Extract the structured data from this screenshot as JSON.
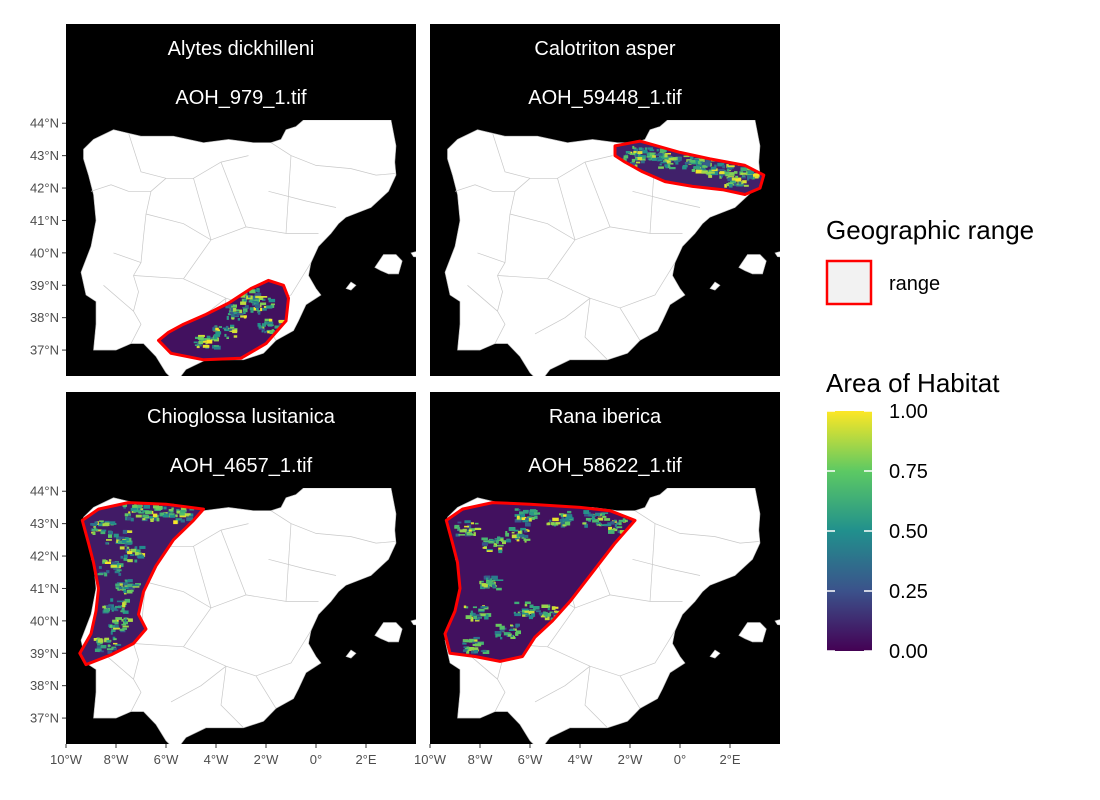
{
  "chart_data": {
    "type": "heatmap",
    "facet_layout": {
      "rows": 2,
      "cols": 2
    },
    "x_ticks": [
      "10°W",
      "8°W",
      "6°W",
      "4°W",
      "2°W",
      "0°",
      "2°E"
    ],
    "x_tick_values": [
      -10,
      -8,
      -6,
      -4,
      -2,
      0,
      2
    ],
    "y_ticks": [
      "44°N",
      "43°N",
      "42°N",
      "41°N",
      "40°N",
      "39°N",
      "38°N",
      "37°N"
    ],
    "y_tick_values": [
      44,
      43,
      42,
      41,
      40,
      39,
      38,
      37
    ],
    "xlim": [
      -10,
      4
    ],
    "ylim": [
      36.2,
      44.1
    ],
    "facets": [
      {
        "species": "Alytes dickhilleni",
        "file": "AOH_979_1.tif",
        "range_polygon": [
          [
            -6.3,
            37.3
          ],
          [
            -5.8,
            36.9
          ],
          [
            -4.5,
            36.7
          ],
          [
            -3.0,
            36.75
          ],
          [
            -2.0,
            37.2
          ],
          [
            -1.2,
            37.9
          ],
          [
            -1.1,
            38.6
          ],
          [
            -1.3,
            39.0
          ],
          [
            -1.9,
            39.15
          ],
          [
            -2.6,
            38.9
          ],
          [
            -3.5,
            38.45
          ],
          [
            -4.4,
            38.1
          ],
          [
            -5.3,
            37.8
          ],
          [
            -5.9,
            37.55
          ]
        ],
        "habitat_level": 0.05,
        "bright_patches": [
          [
            -3.2,
            38.2
          ],
          [
            -2.2,
            38.4
          ],
          [
            -1.9,
            37.8
          ],
          [
            -4.5,
            37.3
          ],
          [
            -3.7,
            37.6
          ],
          [
            -2.6,
            38.7
          ]
        ]
      },
      {
        "species": "Calotriton asper",
        "file": "AOH_59448_1.tif",
        "range_polygon": [
          [
            -2.6,
            43.3
          ],
          [
            -1.6,
            43.45
          ],
          [
            0.0,
            43.1
          ],
          [
            1.2,
            42.9
          ],
          [
            2.6,
            42.7
          ],
          [
            3.35,
            42.4
          ],
          [
            3.2,
            42.0
          ],
          [
            2.6,
            41.8
          ],
          [
            1.7,
            41.95
          ],
          [
            0.5,
            42.05
          ],
          [
            -0.6,
            42.2
          ],
          [
            -1.5,
            42.5
          ],
          [
            -2.2,
            42.8
          ],
          [
            -2.6,
            43.0
          ]
        ],
        "habitat_level": 0.1,
        "bright_patches": [
          [
            -1.5,
            43.1
          ],
          [
            -0.5,
            42.85
          ],
          [
            0.5,
            42.8
          ],
          [
            1.5,
            42.55
          ],
          [
            2.2,
            42.3
          ],
          [
            -0.9,
            43.0
          ],
          [
            0.9,
            42.7
          ],
          [
            2.6,
            42.55
          ],
          [
            -1.9,
            42.95
          ]
        ]
      },
      {
        "species": "Chioglossa lusitanica",
        "file": "AOH_4657_1.tif",
        "range_polygon": [
          [
            -9.35,
            43.1
          ],
          [
            -8.7,
            43.45
          ],
          [
            -7.5,
            43.65
          ],
          [
            -6.0,
            43.6
          ],
          [
            -4.5,
            43.45
          ],
          [
            -4.9,
            43.1
          ],
          [
            -5.7,
            42.5
          ],
          [
            -6.4,
            41.7
          ],
          [
            -6.9,
            40.9
          ],
          [
            -7.1,
            40.2
          ],
          [
            -6.8,
            39.75
          ],
          [
            -7.3,
            39.3
          ],
          [
            -8.2,
            38.95
          ],
          [
            -9.2,
            38.65
          ],
          [
            -9.45,
            39.0
          ],
          [
            -9.0,
            39.6
          ],
          [
            -8.8,
            40.3
          ],
          [
            -8.7,
            41.0
          ],
          [
            -8.9,
            41.8
          ],
          [
            -9.1,
            42.4
          ]
        ],
        "habitat_level": 0.08,
        "bright_patches": [
          [
            -8.6,
            42.9
          ],
          [
            -8.0,
            42.6
          ],
          [
            -7.4,
            42.1
          ],
          [
            -8.3,
            41.7
          ],
          [
            -7.6,
            41.1
          ],
          [
            -8.1,
            40.5
          ],
          [
            -7.3,
            43.4
          ],
          [
            -6.5,
            43.35
          ],
          [
            -5.5,
            43.3
          ],
          [
            -8.5,
            39.3
          ],
          [
            -7.9,
            39.9
          ]
        ]
      },
      {
        "species": "Rana iberica",
        "file": "AOH_58622_1.tif",
        "range_polygon": [
          [
            -9.35,
            43.1
          ],
          [
            -8.7,
            43.45
          ],
          [
            -7.5,
            43.65
          ],
          [
            -6.0,
            43.6
          ],
          [
            -4.0,
            43.5
          ],
          [
            -2.8,
            43.4
          ],
          [
            -1.8,
            43.1
          ],
          [
            -2.6,
            42.4
          ],
          [
            -3.5,
            41.5
          ],
          [
            -4.4,
            40.6
          ],
          [
            -5.1,
            40.0
          ],
          [
            -5.8,
            39.5
          ],
          [
            -6.3,
            38.9
          ],
          [
            -7.2,
            38.75
          ],
          [
            -8.2,
            38.9
          ],
          [
            -9.2,
            39.0
          ],
          [
            -9.4,
            39.6
          ],
          [
            -9.0,
            40.3
          ],
          [
            -8.8,
            41.0
          ],
          [
            -8.9,
            41.8
          ],
          [
            -9.1,
            42.4
          ]
        ],
        "habitat_level": 0.05,
        "bright_patches": [
          [
            -8.6,
            42.9
          ],
          [
            -7.5,
            42.4
          ],
          [
            -6.2,
            43.25
          ],
          [
            -4.9,
            43.2
          ],
          [
            -3.5,
            43.2
          ],
          [
            -2.6,
            42.95
          ],
          [
            -7.7,
            41.2
          ],
          [
            -8.2,
            40.3
          ],
          [
            -6.2,
            40.4
          ],
          [
            -5.2,
            40.3
          ],
          [
            -7.0,
            39.7
          ],
          [
            -8.3,
            39.3
          ],
          [
            -6.6,
            42.7
          ]
        ]
      }
    ],
    "legend": {
      "range_title": "Geographic range",
      "range_label": "range",
      "range_fill": "#f2f2f2",
      "range_stroke": "#ff0000",
      "habitat_title": "Area of Habitat",
      "habitat_ticks": [
        "1.00",
        "0.75",
        "0.50",
        "0.25",
        "0.00"
      ],
      "habitat_tick_values": [
        1.0,
        0.75,
        0.5,
        0.25,
        0.0
      ],
      "colormap": [
        "#440154",
        "#3b528b",
        "#21908d",
        "#5dc963",
        "#fde725"
      ]
    },
    "colors": {
      "ocean": "#000000",
      "land": "#ffffff",
      "strip_bg": "#000000",
      "strip_text": "#ffffff"
    }
  }
}
